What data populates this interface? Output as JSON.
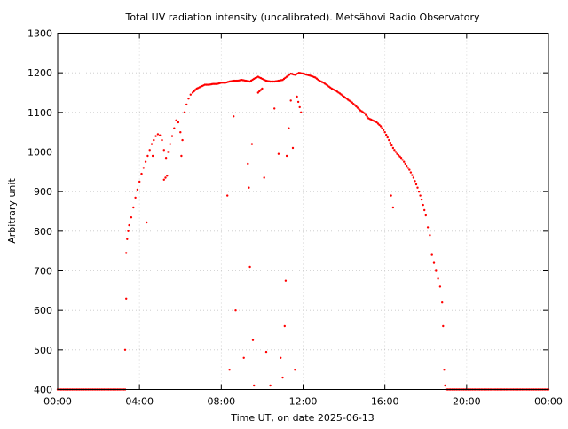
{
  "chart_data": {
    "type": "scatter",
    "title": "Total UV radiation intensity (uncalibrated). Metsähovi Radio Observatory",
    "xlabel": "Time UT, on date 2025-06-13",
    "ylabel": "Arbitrary unit",
    "xlim": [
      0,
      24
    ],
    "ylim": [
      400,
      1300
    ],
    "grid": true,
    "marker_color": "#ff0000",
    "x_ticks": [
      {
        "value": 0,
        "label": "00:00"
      },
      {
        "value": 4,
        "label": "04:00"
      },
      {
        "value": 8,
        "label": "08:00"
      },
      {
        "value": 12,
        "label": "12:00"
      },
      {
        "value": 16,
        "label": "16:00"
      },
      {
        "value": 20,
        "label": "20:00"
      },
      {
        "value": 24,
        "label": "00:00"
      }
    ],
    "y_ticks": [
      {
        "value": 400,
        "label": "400"
      },
      {
        "value": 500,
        "label": "500"
      },
      {
        "value": 600,
        "label": "600"
      },
      {
        "value": 700,
        "label": "700"
      },
      {
        "value": 800,
        "label": "800"
      },
      {
        "value": 900,
        "label": "900"
      },
      {
        "value": 1000,
        "label": "1000"
      },
      {
        "value": 1100,
        "label": "1100"
      },
      {
        "value": 1200,
        "label": "1200"
      },
      {
        "value": 1300,
        "label": "1300"
      }
    ],
    "series": [
      {
        "points": [
          [
            0.0,
            400
          ],
          [
            0.5,
            400
          ],
          [
            1.0,
            400
          ],
          [
            1.5,
            400
          ],
          [
            2.0,
            400
          ],
          [
            2.5,
            400
          ],
          [
            3.0,
            400
          ],
          [
            3.3,
            400
          ],
          [
            3.3,
            500
          ],
          [
            3.35,
            630
          ],
          [
            3.35,
            745
          ],
          [
            3.4,
            780
          ],
          [
            3.45,
            800
          ],
          [
            3.5,
            815
          ],
          [
            3.6,
            835
          ],
          [
            3.7,
            860
          ],
          [
            3.8,
            885
          ],
          [
            3.9,
            905
          ],
          [
            4.0,
            925
          ],
          [
            4.1,
            945
          ],
          [
            4.2,
            960
          ],
          [
            4.3,
            975
          ],
          [
            4.4,
            990
          ],
          [
            4.35,
            822
          ],
          [
            4.5,
            1005
          ],
          [
            4.6,
            1020
          ],
          [
            4.65,
            990
          ],
          [
            4.7,
            1030
          ],
          [
            4.8,
            1040
          ],
          [
            4.9,
            1045
          ],
          [
            5.0,
            1042
          ],
          [
            5.1,
            1030
          ],
          [
            5.2,
            1005
          ],
          [
            5.3,
            985
          ],
          [
            5.4,
            1000
          ],
          [
            5.5,
            1020
          ],
          [
            5.6,
            1040
          ],
          [
            5.7,
            1060
          ],
          [
            5.8,
            1080
          ],
          [
            5.9,
            1075
          ],
          [
            6.0,
            1050
          ],
          [
            6.1,
            1030
          ],
          [
            6.2,
            1100
          ],
          [
            6.3,
            1120
          ],
          [
            6.4,
            1135
          ],
          [
            6.5,
            1145
          ],
          [
            6.6,
            1150
          ],
          [
            6.8,
            1160
          ],
          [
            7.0,
            1165
          ],
          [
            7.2,
            1170
          ],
          [
            7.4,
            1170
          ],
          [
            7.6,
            1172
          ],
          [
            7.8,
            1172
          ],
          [
            8.0,
            1175
          ],
          [
            8.2,
            1175
          ],
          [
            8.4,
            1178
          ],
          [
            8.6,
            1180
          ],
          [
            8.8,
            1180
          ],
          [
            9.0,
            1182
          ],
          [
            9.2,
            1180
          ],
          [
            9.4,
            1178
          ],
          [
            9.6,
            1185
          ],
          [
            9.8,
            1190
          ],
          [
            10.0,
            1185
          ],
          [
            10.2,
            1180
          ],
          [
            10.4,
            1178
          ],
          [
            10.6,
            1178
          ],
          [
            10.8,
            1180
          ],
          [
            11.0,
            1182
          ],
          [
            11.2,
            1190
          ],
          [
            11.4,
            1198
          ],
          [
            11.6,
            1195
          ],
          [
            11.8,
            1200
          ],
          [
            12.0,
            1198
          ],
          [
            12.2,
            1195
          ],
          [
            12.4,
            1192
          ],
          [
            12.6,
            1188
          ],
          [
            12.8,
            1180
          ],
          [
            13.0,
            1175
          ],
          [
            13.2,
            1168
          ],
          [
            13.4,
            1160
          ],
          [
            13.6,
            1155
          ],
          [
            13.8,
            1148
          ],
          [
            14.0,
            1140
          ],
          [
            14.2,
            1132
          ],
          [
            14.4,
            1125
          ],
          [
            14.6,
            1115
          ],
          [
            14.8,
            1105
          ],
          [
            15.0,
            1098
          ],
          [
            15.2,
            1085
          ],
          [
            15.4,
            1080
          ],
          [
            15.6,
            1075
          ],
          [
            15.8,
            1065
          ],
          [
            16.0,
            1050
          ],
          [
            16.2,
            1030
          ],
          [
            16.4,
            1010
          ],
          [
            16.6,
            995
          ],
          [
            16.8,
            985
          ],
          [
            17.0,
            970
          ],
          [
            17.2,
            955
          ],
          [
            17.4,
            935
          ],
          [
            17.6,
            910
          ],
          [
            17.8,
            880
          ],
          [
            18.0,
            840
          ],
          [
            18.1,
            810
          ],
          [
            18.2,
            790
          ],
          [
            18.3,
            740
          ],
          [
            18.4,
            720
          ],
          [
            18.5,
            700
          ],
          [
            18.6,
            680
          ],
          [
            18.7,
            660
          ],
          [
            18.8,
            620
          ],
          [
            18.85,
            560
          ],
          [
            18.9,
            450
          ],
          [
            18.95,
            410
          ],
          [
            19.0,
            400
          ],
          [
            19.5,
            400
          ],
          [
            20.0,
            400
          ],
          [
            20.5,
            400
          ],
          [
            21.0,
            400
          ],
          [
            21.5,
            400
          ],
          [
            22.0,
            400
          ],
          [
            22.5,
            400
          ],
          [
            23.0,
            400
          ],
          [
            23.5,
            400
          ],
          [
            24.0,
            400
          ],
          [
            5.2,
            930
          ],
          [
            5.35,
            940
          ],
          [
            6.05,
            990
          ],
          [
            8.3,
            890
          ],
          [
            8.4,
            450
          ],
          [
            8.6,
            1090
          ],
          [
            8.7,
            600
          ],
          [
            9.1,
            480
          ],
          [
            9.3,
            970
          ],
          [
            9.35,
            910
          ],
          [
            9.4,
            710
          ],
          [
            9.5,
            1020
          ],
          [
            9.55,
            525
          ],
          [
            9.6,
            410
          ],
          [
            9.8,
            1150
          ],
          [
            10.0,
            1160
          ],
          [
            10.1,
            935
          ],
          [
            10.2,
            495
          ],
          [
            10.4,
            410
          ],
          [
            10.6,
            1110
          ],
          [
            10.8,
            995
          ],
          [
            10.9,
            480
          ],
          [
            11.0,
            430
          ],
          [
            11.1,
            560
          ],
          [
            11.15,
            675
          ],
          [
            11.2,
            990
          ],
          [
            11.3,
            1060
          ],
          [
            11.4,
            1130
          ],
          [
            11.5,
            1010
          ],
          [
            11.6,
            450
          ],
          [
            11.7,
            1140
          ],
          [
            11.9,
            1100
          ],
          [
            16.3,
            890
          ],
          [
            16.4,
            860
          ]
        ]
      }
    ]
  }
}
